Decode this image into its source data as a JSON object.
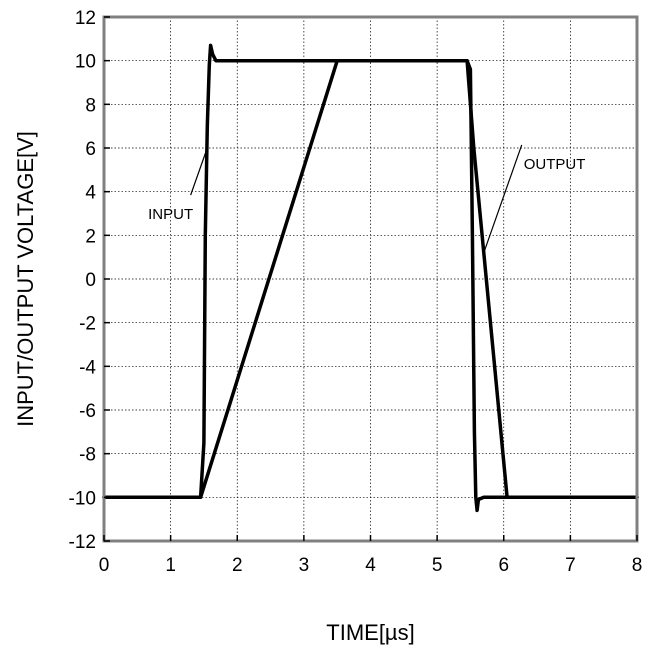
{
  "chart_data": {
    "type": "line",
    "title": "",
    "xlabel": "TIME[µs]",
    "ylabel": "INPUT/OUTPUT VOLTAGE[V]",
    "xlim": [
      0,
      8
    ],
    "ylim": [
      -12,
      12
    ],
    "x_ticks": [
      "0",
      "1",
      "2",
      "3",
      "4",
      "5",
      "6",
      "7",
      "8"
    ],
    "y_ticks": [
      "12",
      "10",
      "8",
      "6",
      "4",
      "2",
      "0",
      "-2",
      "-4",
      "-6",
      "-8",
      "-10",
      "-12"
    ],
    "grid": true,
    "series": [
      {
        "name": "INPUT",
        "x": [
          0,
          1.45,
          1.5,
          1.52,
          1.55,
          1.58,
          1.6,
          1.63,
          1.68,
          1.8,
          5.45,
          5.5,
          5.53,
          5.56,
          5.58,
          5.6,
          5.62,
          5.7,
          8
        ],
        "y": [
          -10,
          -10,
          -7.5,
          2,
          7,
          9.8,
          10.7,
          10.3,
          10,
          10,
          10,
          9.6,
          2,
          -7,
          -10,
          -10.6,
          -10.1,
          -10,
          -10
        ]
      },
      {
        "name": "OUTPUT",
        "x": [
          0,
          1.45,
          3.5,
          5.45,
          5.55,
          6.05,
          8
        ],
        "y": [
          -10,
          -10,
          10,
          10,
          6,
          -10,
          -10
        ]
      }
    ],
    "annotations": [
      {
        "text": "INPUT",
        "x": 1.0,
        "y": 3.2,
        "points_to": [
          1.55,
          6.0
        ]
      },
      {
        "text": "OUTPUT",
        "x": 6.3,
        "y": 5.5,
        "points_to": [
          5.7,
          1.2
        ]
      }
    ]
  }
}
